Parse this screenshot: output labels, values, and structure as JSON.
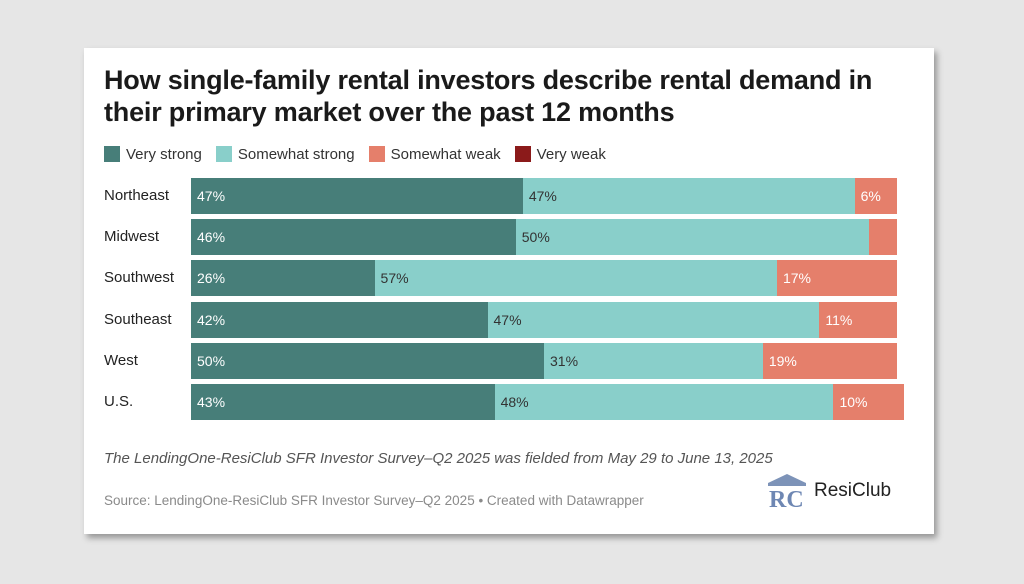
{
  "title": "How single-family rental investors describe rental demand in their primary market over the past 12 months",
  "note": "The LendingOne-ResiClub SFR Investor Survey–Q2 2025 was fielded from May 29 to June 13, 2025",
  "source": "Source: LendingOne-ResiClub SFR Investor Survey–Q2 2025 • Created with Datawrapper",
  "logo": {
    "text": "ResiClub",
    "mark_letters": "RC",
    "icon": "resiclub-logo-icon"
  },
  "colors": {
    "very_strong": "#477e79",
    "somewhat_strong": "#89cfca",
    "somewhat_weak": "#e57f6b",
    "very_weak": "#8b1a1a",
    "background": "#e6e6e6",
    "card": "#ffffff"
  },
  "chart_data": {
    "type": "bar",
    "orientation": "horizontal",
    "stacked": true,
    "title": "How single-family rental investors describe rental demand in their primary market over the past 12 months",
    "legend": {
      "placement": "top-left"
    },
    "xlim": [
      0,
      100
    ],
    "categories": [
      "Northeast",
      "Midwest",
      "Southwest",
      "Southeast",
      "West",
      "U.S."
    ],
    "series": [
      {
        "name": "Very strong",
        "values": [
          47,
          46,
          26,
          42,
          50,
          43
        ],
        "labels": [
          "47%",
          "46%",
          "26%",
          "42%",
          "50%",
          "43%"
        ]
      },
      {
        "name": "Somewhat strong",
        "values": [
          47,
          50,
          57,
          47,
          31,
          48
        ],
        "labels": [
          "47%",
          "50%",
          "57%",
          "47%",
          "31%",
          "48%"
        ]
      },
      {
        "name": "Somewhat weak",
        "values": [
          6,
          4,
          17,
          11,
          19,
          10
        ],
        "labels": [
          "6%",
          "",
          "17%",
          "11%",
          "19%",
          "10%"
        ]
      },
      {
        "name": "Very weak",
        "values": [
          0,
          0,
          0,
          0,
          0,
          0
        ],
        "labels": [
          "",
          "",
          "",
          "",
          "",
          ""
        ]
      }
    ]
  }
}
